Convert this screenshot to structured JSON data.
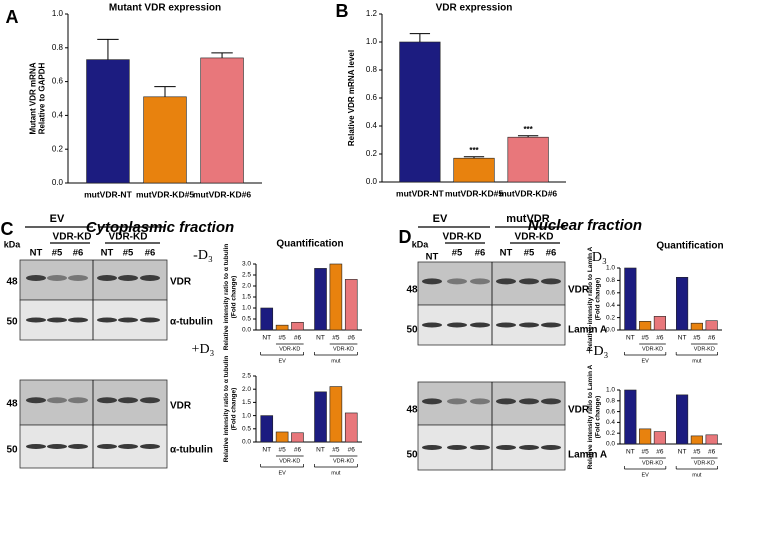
{
  "chart_data": [
    {
      "type": "bar",
      "panel": "A",
      "title": "Mutant VDR expression",
      "ylabel": [
        "Mutant VDR mRNA",
        "Relative to GAPDH"
      ],
      "categories": [
        "mutVDR-NT",
        "mutVDR-KD#5",
        "mutVDR-KD#6"
      ],
      "values": [
        0.73,
        0.51,
        0.74
      ],
      "errors": [
        0.12,
        0.06,
        0.03
      ],
      "colors": [
        "#1c1c80",
        "#e8820e",
        "#e8777b"
      ],
      "ylim": [
        0,
        1
      ],
      "yticks": [
        {
          "value": 0,
          "label": "0.0"
        },
        0.2,
        0.4,
        0.6,
        0.8,
        {
          "value": 1,
          "label": "1.0"
        }
      ]
    },
    {
      "type": "bar",
      "panel": "B",
      "title": "VDR expression",
      "ylabel": [
        "Relative VDR mRNA level"
      ],
      "categories": [
        "mutVDR-NT",
        "mutVDR-KD#5",
        "mutVDR-KD#6"
      ],
      "values": [
        1.0,
        0.17,
        0.32
      ],
      "errors": [
        0.06,
        0.01,
        0.01
      ],
      "bar_labels": [
        null,
        "***",
        "***"
      ],
      "colors": [
        "#1c1c80",
        "#e8820e",
        "#e8777b"
      ],
      "ylim": [
        0,
        1.2
      ],
      "yticks": [
        {
          "value": 0,
          "label": "0.0"
        },
        0.2,
        0.4,
        0.6,
        0.8,
        {
          "value": 1,
          "label": "1.0"
        },
        1.2
      ]
    },
    {
      "type": "bar",
      "title": "Quantification",
      "ylabel": [
        "Relative intensity ratio to α tubulin",
        "(Fold change)"
      ],
      "categories": [
        "NT",
        "#5",
        "#6",
        "NT",
        "#5",
        "#6"
      ],
      "groups": [
        {
          "name": "EV",
          "sub": "VDR-KD"
        },
        {
          "name": "mut",
          "sub": "VDR-KD"
        }
      ],
      "values": [
        1.0,
        0.22,
        0.35,
        2.8,
        3.0,
        2.3
      ],
      "colors": [
        "#1c1c80",
        "#e8820e",
        "#e8777b",
        "#1c1c80",
        "#e8820e",
        "#e8777b"
      ],
      "ylim": [
        0,
        3
      ],
      "yticks": [
        {
          "value": 0,
          "label": "0.0"
        },
        0.5,
        {
          "value": 1,
          "label": "1.0"
        },
        1.5,
        {
          "value": 2,
          "label": "2.0"
        },
        2.5,
        {
          "value": 3,
          "label": "3.0"
        }
      ]
    },
    {
      "type": "bar",
      "ylabel": [
        "Relative intensity ratio to α tubulin",
        "(Fold change)"
      ],
      "categories": [
        "NT",
        "#5",
        "#6",
        "NT",
        "#5",
        "#6"
      ],
      "groups": [
        {
          "name": "EV",
          "sub": "VDR-KD"
        },
        {
          "name": "mut",
          "sub": "VDR-KD"
        }
      ],
      "values": [
        1.0,
        0.38,
        0.35,
        1.9,
        2.1,
        1.1
      ],
      "colors": [
        "#1c1c80",
        "#e8820e",
        "#e8777b",
        "#1c1c80",
        "#e8820e",
        "#e8777b"
      ],
      "ylim": [
        0,
        2.5
      ],
      "yticks": [
        {
          "value": 0,
          "label": "0.0"
        },
        0.5,
        {
          "value": 1,
          "label": "1.0"
        },
        1.5,
        {
          "value": 2,
          "label": "2.0"
        },
        2.5
      ]
    },
    {
      "type": "bar",
      "title": "Quantification",
      "ylabel": [
        "Relative intensity ratio to Lamin A",
        "(Fold change)"
      ],
      "categories": [
        "NT",
        "#5",
        "#6",
        "NT",
        "#5",
        "#6"
      ],
      "groups": [
        {
          "name": "EV",
          "sub": "VDR-KD"
        },
        {
          "name": "mut",
          "sub": "VDR-KD"
        }
      ],
      "values": [
        1.0,
        0.14,
        0.22,
        0.85,
        0.11,
        0.15
      ],
      "colors": [
        "#1c1c80",
        "#e8820e",
        "#e8777b",
        "#1c1c80",
        "#e8820e",
        "#e8777b"
      ],
      "ylim": [
        0,
        1
      ],
      "yticks": [
        {
          "value": 0,
          "label": "0.0"
        },
        0.2,
        0.4,
        0.6,
        0.8,
        {
          "value": 1,
          "label": "1.0"
        }
      ]
    },
    {
      "type": "bar",
      "ylabel": [
        "Relative intensity ratio to Lamin A",
        "(Fold change)"
      ],
      "categories": [
        "NT",
        "#5",
        "#6",
        "NT",
        "#5",
        "#6"
      ],
      "groups": [
        {
          "name": "EV",
          "sub": "VDR-KD"
        },
        {
          "name": "mut",
          "sub": "VDR-KD"
        }
      ],
      "values": [
        1.0,
        0.28,
        0.23,
        0.91,
        0.15,
        0.17
      ],
      "colors": [
        "#1c1c80",
        "#e8820e",
        "#e8777b",
        "#1c1c80",
        "#e8820e",
        "#e8777b"
      ],
      "ylim": [
        0,
        1
      ],
      "yticks": [
        {
          "value": 0,
          "label": "0.0"
        },
        0.2,
        0.4,
        0.6,
        0.8,
        {
          "value": 1,
          "label": "1.0"
        }
      ]
    }
  ],
  "blots": [
    {
      "letter": "C",
      "title": "Cytoplasmic fraction",
      "groups": [
        "EV"
      ],
      "subgroups": [
        "VDR-KD",
        "VDR-KD"
      ],
      "lanes": [
        "NT",
        "#5",
        "#6",
        "NT",
        "#5",
        "#6"
      ],
      "kda": "kDa",
      "conditions": [
        "-D₃",
        "+D₃"
      ],
      "markers": [
        48,
        50,
        48,
        50
      ],
      "proteins": [
        "VDR",
        "α-tubulin",
        "VDR",
        "α-tubulin"
      ]
    },
    {
      "letter": "D",
      "title": "Nuclear fraction",
      "groups": [
        "EV",
        "mutVDR"
      ],
      "subgroups": [
        "VDR-KD",
        "VDR-KD"
      ],
      "lanes": [
        "NT",
        "#5",
        "#6",
        "NT",
        "#5",
        "#6"
      ],
      "kda": "kDa",
      "conditions": [
        "-D₃",
        "+D₃"
      ],
      "markers": [
        48,
        50,
        48,
        50
      ],
      "proteins": [
        "VDR",
        "Lamin A",
        "VDR",
        "Lamin A"
      ]
    }
  ]
}
